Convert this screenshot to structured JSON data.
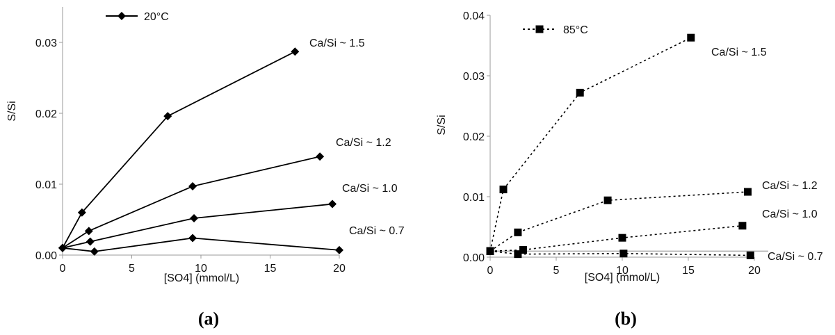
{
  "chart_data": [
    {
      "type": "line",
      "panel_label": "(a)",
      "xlabel": "[SO4] (mmol/L)",
      "ylabel": "S/Si",
      "xlim": [
        0,
        20
      ],
      "ylim": [
        0,
        0.035
      ],
      "xticks": [
        0,
        5,
        10,
        15,
        20
      ],
      "yticks": [
        0,
        0.01,
        0.02,
        0.03
      ],
      "xtick_labels": [
        "0",
        "5",
        "10",
        "15",
        "20"
      ],
      "ytick_labels": [
        "0.00",
        "0.01",
        "0.02",
        "0.03"
      ],
      "legend": {
        "label": "20°C",
        "position": "top-left",
        "marker": "diamond",
        "line": "solid"
      },
      "series": [
        {
          "label": "Ca/Si ~ 1.5",
          "x": [
            0,
            1.4,
            7.6,
            16.8
          ],
          "y": [
            0.001,
            0.006,
            0.0196,
            0.0287
          ]
        },
        {
          "label": "Ca/Si ~ 1.2",
          "x": [
            0,
            1.9,
            9.4,
            18.6
          ],
          "y": [
            0.001,
            0.0034,
            0.0097,
            0.0139
          ]
        },
        {
          "label": "Ca/Si ~ 1.0",
          "x": [
            0,
            2.0,
            9.5,
            19.5
          ],
          "y": [
            0.001,
            0.0019,
            0.0052,
            0.0072
          ]
        },
        {
          "label": "Ca/Si ~ 0.7",
          "x": [
            0,
            2.3,
            9.4,
            20.0
          ],
          "y": [
            0.001,
            0.0005,
            0.0024,
            0.0007
          ]
        }
      ]
    },
    {
      "type": "line",
      "panel_label": "(b)",
      "xlabel": "[SO4] (mmol/L)",
      "ylabel": "S/Si",
      "xlim": [
        0,
        20
      ],
      "ylim": [
        0,
        0.04
      ],
      "xticks": [
        0,
        5,
        10,
        15,
        20
      ],
      "yticks": [
        0,
        0.01,
        0.02,
        0.03,
        0.04
      ],
      "xtick_labels": [
        "0",
        "5",
        "10",
        "15",
        "20"
      ],
      "ytick_labels": [
        "0.00",
        "0.01",
        "0.02",
        "0.03",
        "0.04"
      ],
      "legend": {
        "label": "85°C",
        "position": "top-left",
        "marker": "square",
        "line": "dotted"
      },
      "series": [
        {
          "label": "Ca/Si ~ 1.5",
          "x": [
            0,
            1.0,
            6.8,
            15.2
          ],
          "y": [
            0.001,
            0.0112,
            0.0272,
            0.0363
          ]
        },
        {
          "label": "Ca/Si ~ 1.2",
          "x": [
            0,
            2.1,
            8.9,
            19.5
          ],
          "y": [
            0.001,
            0.0041,
            0.0094,
            0.0108
          ]
        },
        {
          "label": "Ca/Si ~ 1.0",
          "x": [
            0,
            2.5,
            10.0,
            19.1
          ],
          "y": [
            0.001,
            0.0012,
            0.0032,
            0.0052
          ]
        },
        {
          "label": "Ca/Si ~ 0.7",
          "x": [
            0,
            2.1,
            10.1,
            19.7
          ],
          "y": [
            0.001,
            0.0005,
            0.0006,
            0.0003
          ]
        }
      ],
      "reference_line": {
        "y": 0.001
      }
    }
  ],
  "colors": {
    "line": "#000000",
    "axis": "#999999",
    "reference": "#aaaaaa"
  }
}
